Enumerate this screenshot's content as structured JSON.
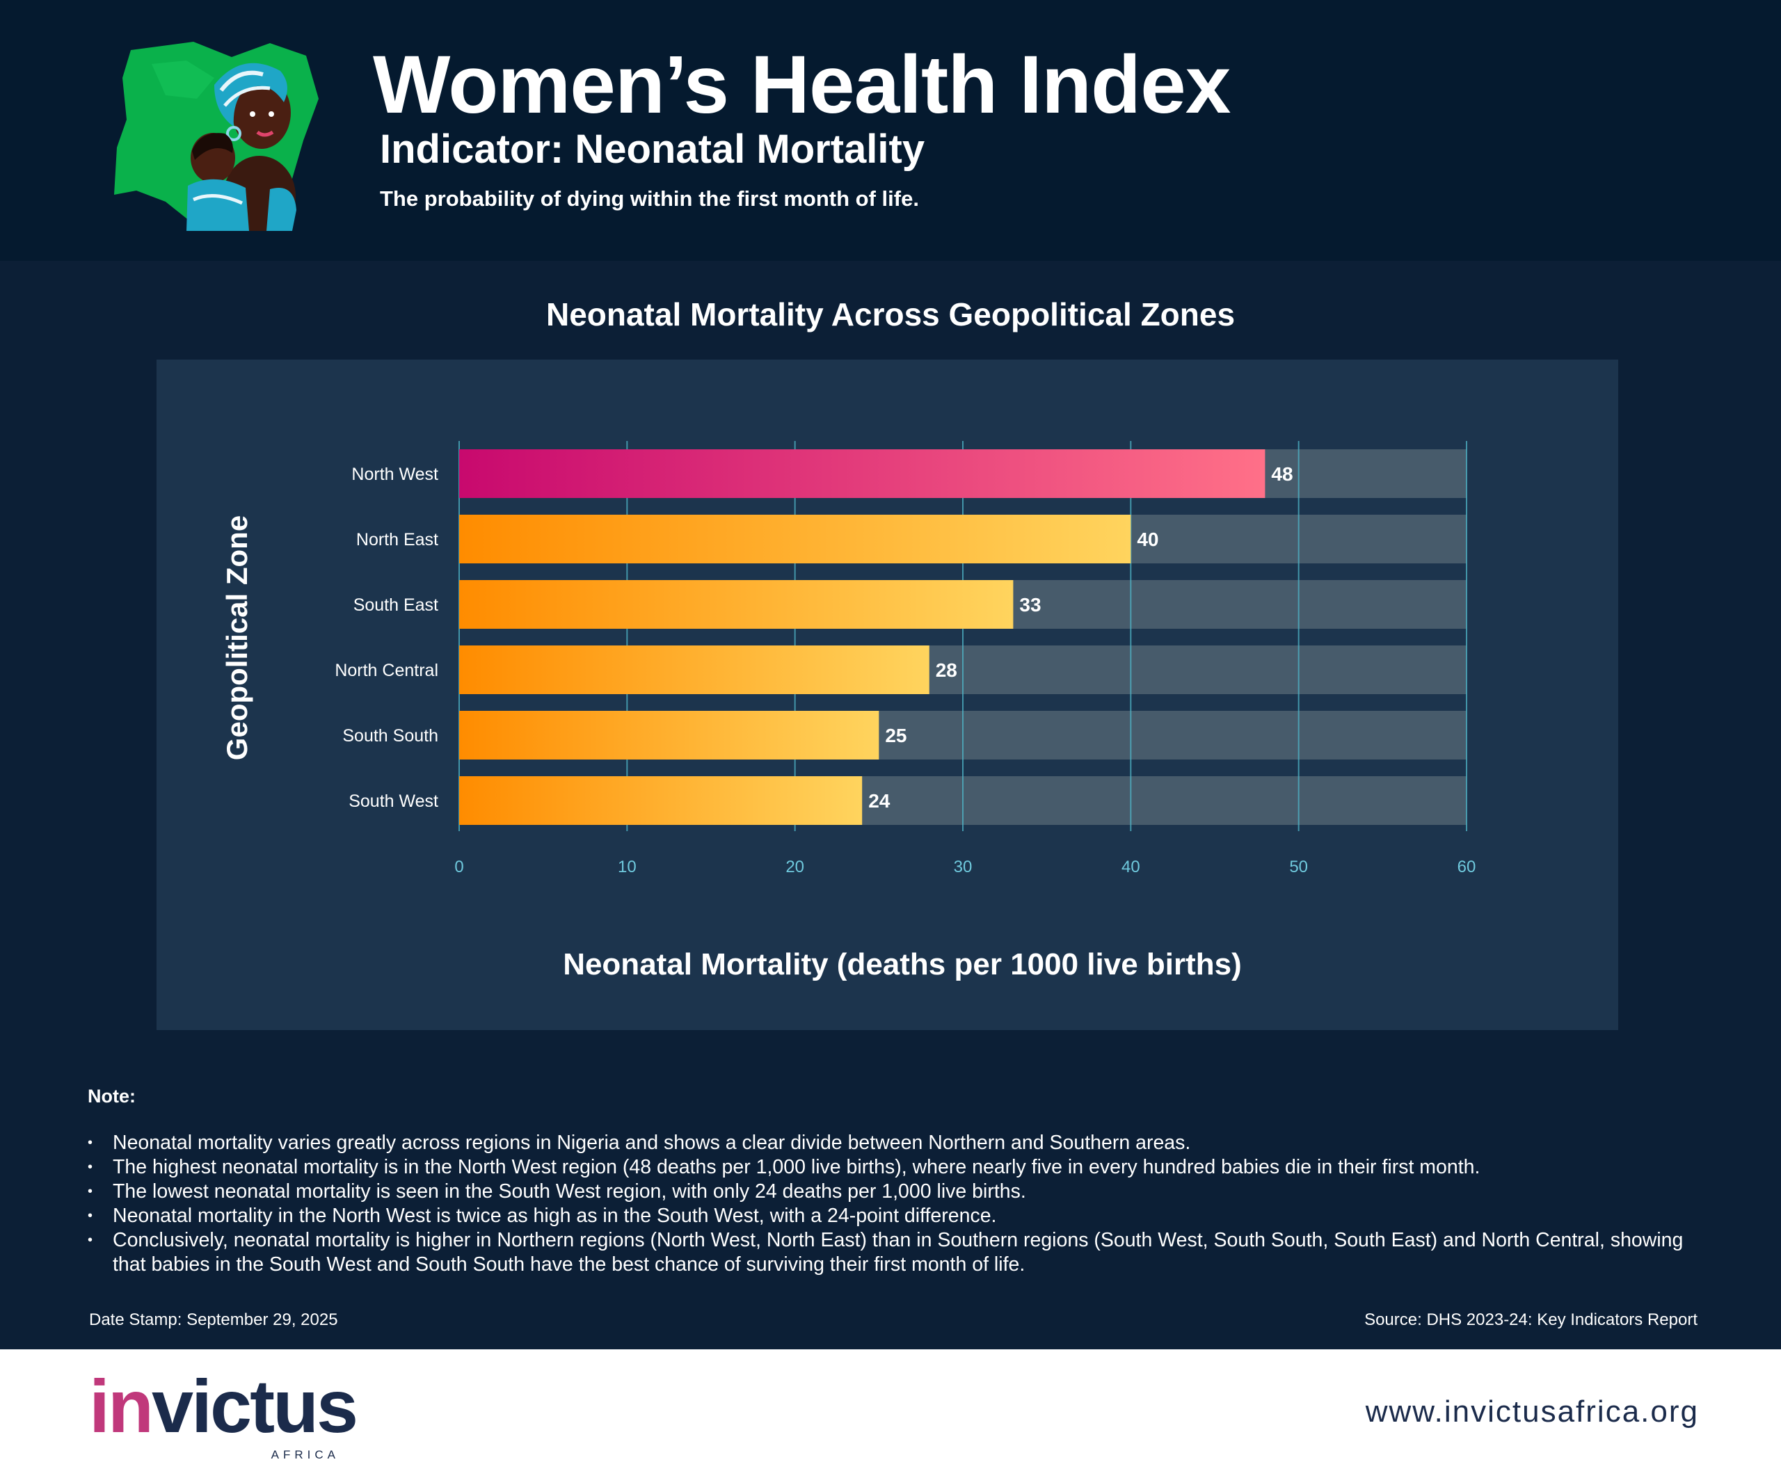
{
  "header": {
    "title": "Women’s Health Index",
    "subtitle": "Indicator: Neonatal Mortality",
    "description": "The probability of dying within the first month of life."
  },
  "chart_data": {
    "type": "bar",
    "orientation": "horizontal",
    "title": "Neonatal Mortality Across Geopolitical Zones",
    "xlabel": "Neonatal Mortality (deaths per 1000 live births)",
    "ylabel": "Geopolitical Zone",
    "categories": [
      "North West",
      "North East",
      "South East",
      "North Central",
      "South South",
      "South West"
    ],
    "values": [
      48,
      40,
      33,
      28,
      25,
      24
    ],
    "value_labels": [
      "48",
      "40",
      "33",
      "28",
      "25",
      "24"
    ],
    "xlim": [
      0,
      60
    ],
    "xticks": [
      0,
      10,
      20,
      30,
      40,
      50,
      60
    ],
    "xtick_labels": [
      "0",
      "10",
      "20",
      "30",
      "40",
      "50",
      "60"
    ],
    "grid": "vertical",
    "highlight_category": "North West",
    "colors": {
      "highlight_start": "#c8096e",
      "highlight_end": "#ff7088",
      "bar_start": "#ff8c00",
      "bar_end": "#ffd45e",
      "track": "#475b6b",
      "grid": "#4fb6c8",
      "tick_label": "#6fc9dd"
    }
  },
  "notes": {
    "heading": "Note:",
    "items": [
      "Neonatal mortality varies greatly across regions in Nigeria and shows a clear divide between Northern and Southern areas.",
      "The highest neonatal mortality is in the North West region (48 deaths per 1,000 live births), where nearly five in every hundred babies die in their first month.",
      "The lowest neonatal mortality is seen in the South West region, with only 24 deaths per 1,000 live births.",
      "Neonatal mortality in the North West is twice as high as in the South West, with a 24-point difference.",
      "Conclusively, neonatal mortality is higher in Northern regions (North West, North East) than in Southern regions (South West, South South, South East) and North Central, showing that babies in the South West and South South have the best chance of surviving their first month of life."
    ]
  },
  "date_stamp": "Date Stamp: September 29, 2025",
  "source": "Source: DHS 2023-24: Key Indicators Report",
  "footer": {
    "logo_text": "invictus",
    "logo_subtext": "AFRICA",
    "website": "www.invictusafrica.org"
  },
  "icons": {
    "header_art": "nigeria-map-mother-child-illustration-icon"
  }
}
